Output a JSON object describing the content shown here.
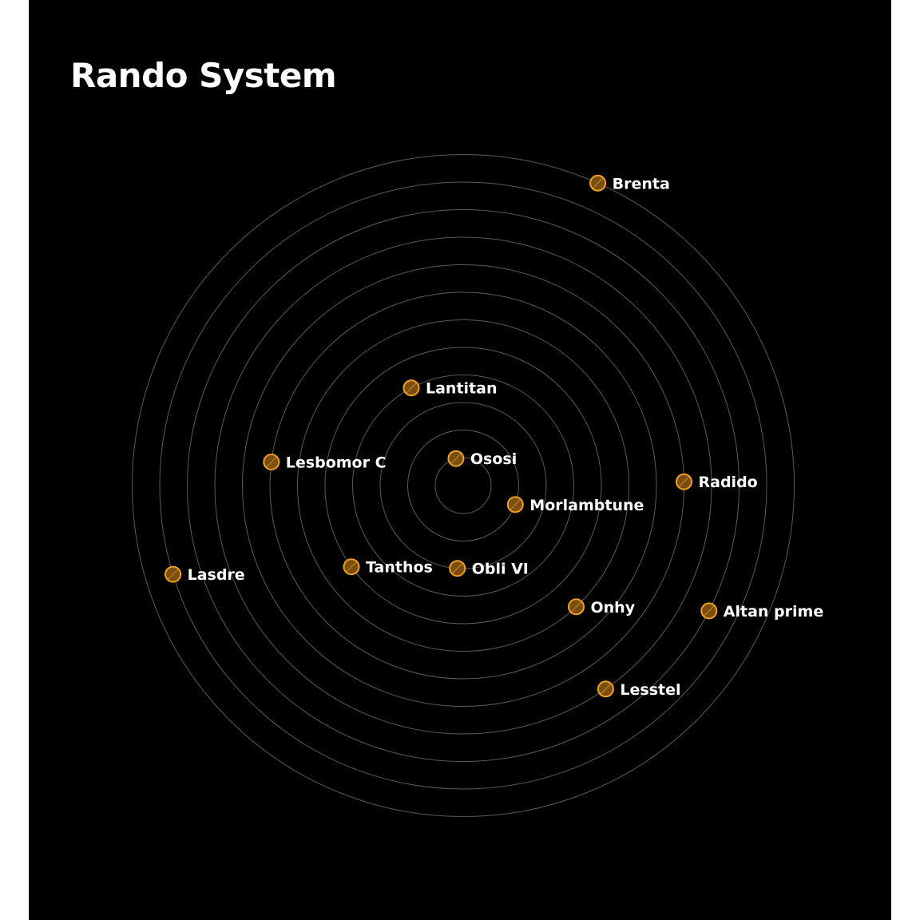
{
  "title": "Rando System",
  "colors": {
    "background": "#000000",
    "orbit": "#5a5a5a",
    "planet_stroke": "#f0a020",
    "planet_fill": "#7a4e10",
    "label": "#ffffff"
  },
  "orbit_count": 12,
  "planets": [
    {
      "name": "Ososi",
      "orbit": 1,
      "angle_deg": 105
    },
    {
      "name": "Morlambtune",
      "orbit": 2,
      "angle_deg": -20
    },
    {
      "name": "Obli VI",
      "orbit": 3,
      "angle_deg": -94
    },
    {
      "name": "Lantitan",
      "orbit": 4,
      "angle_deg": 118
    },
    {
      "name": "Tanthos",
      "orbit": 5,
      "angle_deg": -144
    },
    {
      "name": "Onhy",
      "orbit": 6,
      "angle_deg": -47
    },
    {
      "name": "Lesbomor C",
      "orbit": 7,
      "angle_deg": 173
    },
    {
      "name": "Radido",
      "orbit": 8,
      "angle_deg": 1
    },
    {
      "name": "Lesstel",
      "orbit": 9,
      "angle_deg": -55
    },
    {
      "name": "Altan prime",
      "orbit": 10,
      "angle_deg": -27
    },
    {
      "name": "Lasdre",
      "orbit": 11,
      "angle_deg": -163
    },
    {
      "name": "Brenta",
      "orbit": 12,
      "angle_deg": 66
    }
  ]
}
